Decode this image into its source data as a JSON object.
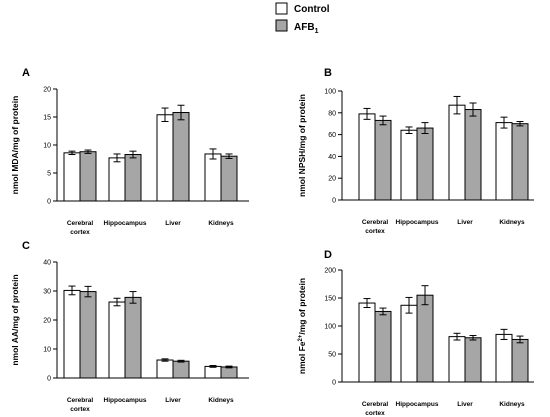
{
  "legend": {
    "items": [
      {
        "name": "Control",
        "color": "#ffffff"
      },
      {
        "name": "AFB",
        "sub": "1",
        "color": "#a6a6a6"
      }
    ]
  },
  "chart_data": [
    {
      "type": "bar",
      "panel": "A",
      "ylabel": "nmol MDA/mg of protein",
      "categories": [
        [
          "Cerebral",
          "cortex"
        ],
        [
          "Hippocampus"
        ],
        [
          "Liver"
        ],
        [
          "Kidneys"
        ]
      ],
      "ylim": [
        0,
        20
      ],
      "yticks": [
        0,
        5,
        10,
        15,
        20
      ],
      "series": [
        {
          "name": "Control",
          "values": [
            8.6,
            7.7,
            15.4,
            8.4
          ],
          "errors": [
            0.3,
            0.7,
            1.2,
            0.9
          ]
        },
        {
          "name": "AFB1",
          "values": [
            8.8,
            8.3,
            15.8,
            8.0
          ],
          "errors": [
            0.3,
            0.6,
            1.3,
            0.4
          ]
        }
      ]
    },
    {
      "type": "bar",
      "panel": "B",
      "ylabel": "nmol NPSH/mg of protein",
      "categories": [
        [
          "Cerebral",
          "cortex"
        ],
        [
          "Hippocampus"
        ],
        [
          "Liver"
        ],
        [
          "Kidneys"
        ]
      ],
      "ylim": [
        0,
        100
      ],
      "yticks": [
        0,
        20,
        40,
        60,
        80,
        100
      ],
      "series": [
        {
          "name": "Control",
          "values": [
            79,
            64,
            87,
            71
          ],
          "errors": [
            5,
            3,
            8,
            5
          ]
        },
        {
          "name": "AFB1",
          "values": [
            73,
            66,
            83,
            70
          ],
          "errors": [
            4,
            5,
            6,
            2
          ]
        }
      ]
    },
    {
      "type": "bar",
      "panel": "C",
      "ylabel": "nmol AA/mg of protein",
      "categories": [
        [
          "Cerebral",
          "cortex"
        ],
        [
          "Hippocampus"
        ],
        [
          "Liver"
        ],
        [
          "Kidneys"
        ]
      ],
      "ylim": [
        0,
        40
      ],
      "yticks": [
        0,
        10,
        20,
        30,
        40
      ],
      "series": [
        {
          "name": "Control",
          "values": [
            30.2,
            26.2,
            6.2,
            4.0
          ],
          "errors": [
            1.5,
            1.3,
            0.4,
            0.3
          ]
        },
        {
          "name": "AFB1",
          "values": [
            29.8,
            27.8,
            5.8,
            3.8
          ],
          "errors": [
            1.8,
            2.0,
            0.3,
            0.3
          ]
        }
      ]
    },
    {
      "type": "bar",
      "panel": "D",
      "ylabel_parts": [
        "nmol Fe",
        "2+",
        "/mg of protein"
      ],
      "categories": [
        [
          "Cerebral",
          "cortex"
        ],
        [
          "Hippocampus"
        ],
        [
          "Liver"
        ],
        [
          "Kidneys"
        ]
      ],
      "ylim": [
        0,
        200
      ],
      "yticks": [
        0,
        50,
        100,
        150,
        200
      ],
      "series": [
        {
          "name": "Control",
          "values": [
            141,
            137,
            81,
            85
          ],
          "errors": [
            8,
            14,
            6,
            9
          ]
        },
        {
          "name": "AFB1",
          "values": [
            126,
            155,
            79,
            76
          ],
          "errors": [
            6,
            17,
            4,
            6
          ]
        }
      ]
    }
  ]
}
